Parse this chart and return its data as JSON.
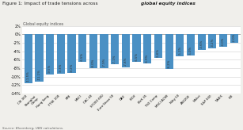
{
  "title_bold": "Figure 1: Impact of trade tensions across ",
  "title_italic": "global equity indices",
  "ylabel": "Global equity indices",
  "source": "Source: Bloomberg, UBS calculations.",
  "categories": [
    "CSI 300",
    "Shanghai\nComp",
    "Hang Seng",
    "FTSE 100",
    "MIB",
    "MSCI",
    "CAC 40",
    "STOXX 600",
    "Euro Stoxx 50",
    "DAX",
    "IBOV",
    "IBrX 35",
    "TSX Comp",
    "MSCI ACWI",
    "Nifty 50",
    "ASX200",
    "Nikkei",
    "S&P 500",
    "TAIEX",
    "IBE"
  ],
  "values": [
    -11.5,
    -11.1,
    -9.5,
    -9.3,
    -9.2,
    -6.5,
    -8.0,
    -7.9,
    -7.1,
    -7.8,
    -6.5,
    -6.9,
    -5.6,
    -8.2,
    -5.1,
    -5.0,
    -3.6,
    -3.2,
    -3.0,
    -2.0
  ],
  "labels": [
    "-11.5%",
    "-11.1%",
    "-9.5%",
    "-9.3%",
    "-9.2%",
    "-6.5%",
    "-8.0%",
    "-7.9%",
    "-7.1%",
    "-7.8%",
    "-6.5%",
    "-6.9%",
    "-5.6%",
    "-8.2%",
    "-5.1%",
    "-5.0%",
    "-3.6%",
    "-3.2%",
    "-3.0%",
    "-2.0%"
  ],
  "bar_color": "#4a90c4",
  "ylim": [
    -14,
    2
  ],
  "yticks": [
    2,
    0,
    -2,
    -4,
    -6,
    -8,
    -10,
    -12,
    -14
  ],
  "ytick_labels": [
    "2%",
    "0%",
    "-2%",
    "-4%",
    "-6%",
    "-8%",
    "-10%",
    "-12%",
    "-14%"
  ],
  "background_color": "#f0efeb",
  "plot_bg_color": "#ffffff"
}
